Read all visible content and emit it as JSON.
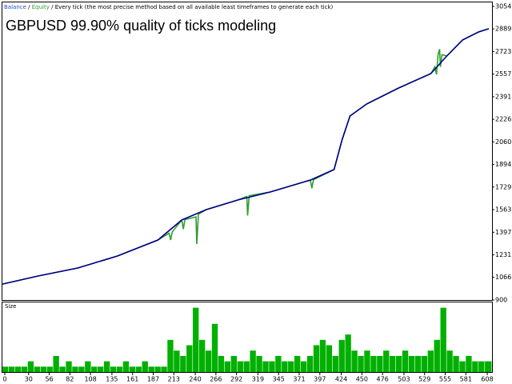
{
  "chart_data": [
    {
      "type": "line",
      "title": "GBPUSD 99.90% quality of ticks modeling",
      "legend_separator": "/",
      "mode": "Every tick (the most precise method based on all available least timeframes to generate each tick)",
      "xlim": [
        0,
        617
      ],
      "ylim": [
        900,
        3054
      ],
      "yticks": [
        900,
        1066,
        1231,
        1397,
        1563,
        1729,
        1894,
        2060,
        2226,
        2391,
        2557,
        2723,
        2889,
        3054
      ],
      "series": [
        {
          "name": "Balance",
          "color": "#00008b",
          "x": [
            0,
            45,
            95,
            145,
            196,
            226,
            257,
            297,
            337,
            388,
            418,
            428,
            438,
            459,
            499,
            540,
            560,
            580,
            600,
            613
          ],
          "values": [
            1017,
            1076,
            1135,
            1223,
            1340,
            1487,
            1563,
            1634,
            1692,
            1780,
            1857,
            2074,
            2250,
            2338,
            2455,
            2561,
            2690,
            2808,
            2866,
            2890
          ]
        },
        {
          "name": "Equity",
          "color": "#2e9e2e",
          "x": [
            0,
            45,
            95,
            145,
            196,
            210,
            212,
            214,
            226,
            228,
            230,
            244,
            245,
            247,
            257,
            297,
            308,
            309,
            311,
            337,
            388,
            390,
            392,
            418,
            428,
            438,
            459,
            499,
            540,
            545,
            547,
            549,
            551,
            552,
            554,
            560,
            580,
            600,
            613
          ],
          "values": [
            1017,
            1076,
            1135,
            1223,
            1340,
            1390,
            1340,
            1400,
            1487,
            1420,
            1490,
            1510,
            1310,
            1530,
            1563,
            1634,
            1660,
            1520,
            1665,
            1692,
            1780,
            1720,
            1782,
            1857,
            2074,
            2250,
            2338,
            2455,
            2561,
            2610,
            2555,
            2700,
            2740,
            2610,
            2700,
            2690,
            2808,
            2866,
            2890
          ]
        }
      ]
    },
    {
      "type": "bar",
      "title": "Size",
      "color": "#00b000",
      "xlim": [
        0,
        617
      ],
      "ylim": [
        0,
        0.13
      ],
      "xticks": [
        0,
        30,
        56,
        82,
        108,
        135,
        161,
        187,
        213,
        240,
        266,
        292,
        319,
        345,
        371,
        397,
        424,
        450,
        476,
        503,
        529,
        555,
        581,
        608
      ],
      "x": [
        0,
        8,
        16,
        24,
        32,
        40,
        48,
        56,
        64,
        72,
        80,
        88,
        96,
        104,
        112,
        120,
        128,
        136,
        144,
        152,
        160,
        168,
        176,
        184,
        192,
        200,
        208,
        216,
        224,
        232,
        240,
        248,
        256,
        264,
        272,
        280,
        288,
        296,
        304,
        312,
        320,
        328,
        336,
        344,
        352,
        360,
        368,
        376,
        384,
        392,
        400,
        408,
        416,
        424,
        432,
        440,
        448,
        456,
        464,
        472,
        480,
        488,
        496,
        504,
        512,
        520,
        528,
        536,
        544,
        552,
        560,
        568,
        576,
        584,
        592,
        600,
        608
      ],
      "values": [
        0.01,
        0.01,
        0.01,
        0.01,
        0.02,
        0.01,
        0.01,
        0.01,
        0.03,
        0.01,
        0.02,
        0.01,
        0.01,
        0.02,
        0.01,
        0.01,
        0.02,
        0.01,
        0.01,
        0.02,
        0.01,
        0.01,
        0.02,
        0.01,
        0.01,
        0.01,
        0.06,
        0.04,
        0.03,
        0.05,
        0.12,
        0.06,
        0.04,
        0.09,
        0.03,
        0.02,
        0.03,
        0.02,
        0.02,
        0.04,
        0.03,
        0.02,
        0.02,
        0.03,
        0.02,
        0.02,
        0.03,
        0.02,
        0.03,
        0.05,
        0.06,
        0.05,
        0.03,
        0.06,
        0.07,
        0.04,
        0.03,
        0.04,
        0.03,
        0.03,
        0.04,
        0.03,
        0.03,
        0.04,
        0.03,
        0.03,
        0.03,
        0.04,
        0.06,
        0.12,
        0.04,
        0.03,
        0.02,
        0.03,
        0.02,
        0.02,
        0.02
      ]
    }
  ]
}
